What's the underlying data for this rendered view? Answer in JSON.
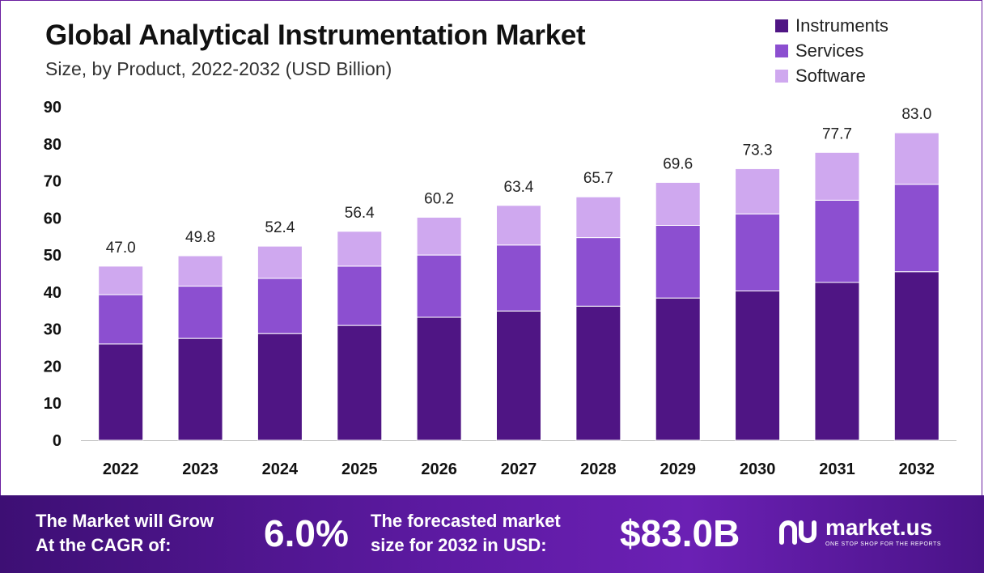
{
  "chart_data": {
    "type": "bar",
    "stacked": true,
    "title": "Global Analytical Instrumentation Market",
    "subtitle": "Size, by Product, 2022-2032 (USD Billion)",
    "categories": [
      "2022",
      "2023",
      "2024",
      "2025",
      "2026",
      "2027",
      "2028",
      "2029",
      "2030",
      "2031",
      "2032"
    ],
    "series": [
      {
        "name": "Instruments",
        "color": "#4f1584",
        "values": [
          26.0,
          27.5,
          28.8,
          31.0,
          33.2,
          34.9,
          36.2,
          38.4,
          40.3,
          42.6,
          45.5
        ]
      },
      {
        "name": "Services",
        "color": "#8c4fd0",
        "values": [
          13.3,
          14.1,
          14.9,
          16.0,
          16.8,
          17.8,
          18.5,
          19.6,
          20.8,
          22.2,
          23.6
        ]
      },
      {
        "name": "Software",
        "color": "#cfa8ef",
        "values": [
          7.7,
          8.2,
          8.7,
          9.4,
          10.2,
          10.7,
          11.0,
          11.6,
          12.2,
          12.9,
          13.9
        ]
      }
    ],
    "totals": [
      "47.0",
      "49.8",
      "52.4",
      "56.4",
      "60.2",
      "63.4",
      "65.7",
      "69.6",
      "73.3",
      "77.7",
      "83.0"
    ],
    "yticks": [
      "0",
      "10",
      "20",
      "30",
      "40",
      "50",
      "60",
      "70",
      "80",
      "90"
    ],
    "ylim": [
      0,
      90
    ],
    "grid": false,
    "legend_position": "top-right"
  },
  "footer": {
    "cagr_text_1": "The Market will Grow",
    "cagr_text_2": "At the CAGR of:",
    "cagr_value": "6.0%",
    "forecast_text_1": "The forecasted market",
    "forecast_text_2": "size for 2032 in USD:",
    "forecast_value": "$83.0B",
    "brand_name": "market.us",
    "brand_tagline": "ONE STOP SHOP FOR THE REPORTS"
  }
}
